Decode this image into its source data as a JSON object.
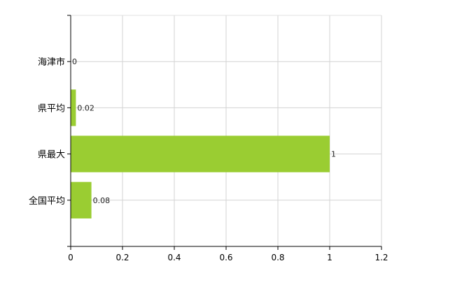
{
  "chart_data": {
    "type": "bar",
    "orientation": "horizontal",
    "categories": [
      "海津市",
      "県平均",
      "県最大",
      "全国平均"
    ],
    "values": [
      0,
      0.02,
      1,
      0.08
    ],
    "data_labels": [
      "0",
      "0.02",
      "1",
      "0.08"
    ],
    "title": "",
    "xlabel": "",
    "ylabel": "",
    "xlim": [
      0,
      1.2
    ],
    "xticks": [
      "0",
      "0.2",
      "0.4",
      "0.6",
      "0.8",
      "1",
      "1.2"
    ],
    "grid": true,
    "bar_color": "#9acd32",
    "legend": "none"
  }
}
